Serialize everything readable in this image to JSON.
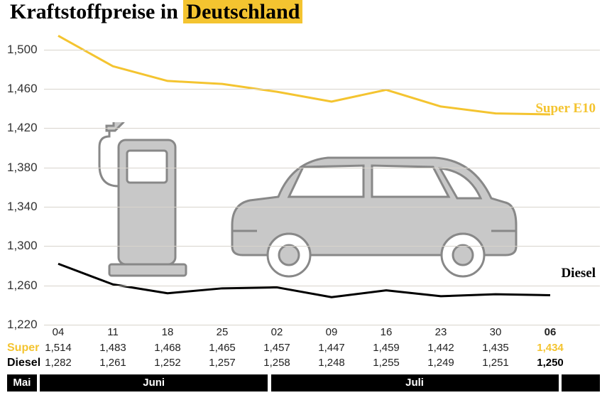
{
  "title_prefix": "Kraftstoffpreise in ",
  "title_highlight": "Deutschland",
  "chart": {
    "type": "line",
    "ylim": [
      1220,
      1520
    ],
    "yticks": [
      1220,
      1260,
      1300,
      1340,
      1380,
      1420,
      1460,
      1500
    ],
    "ytick_labels": [
      "1,220",
      "1,260",
      "1,300",
      "1,340",
      "1,380",
      "1,420",
      "1,460",
      "1,500"
    ],
    "grid_color": "#d8d4cc",
    "background_color": "#ffffff",
    "x_count": 10,
    "x_labels": [
      "04",
      "11",
      "18",
      "25",
      "02",
      "09",
      "16",
      "23",
      "30",
      "06"
    ],
    "series": {
      "super": {
        "label": "Super E10",
        "color": "#f4c430",
        "line_width": 3,
        "values": [
          1514,
          1483,
          1468,
          1465,
          1457,
          1447,
          1459,
          1442,
          1435,
          1434
        ],
        "display": [
          "1,514",
          "1,483",
          "1,468",
          "1,465",
          "1,457",
          "1,447",
          "1,459",
          "1,442",
          "1,435",
          "1,434"
        ]
      },
      "diesel": {
        "label": "Diesel",
        "color": "#000000",
        "line_width": 3,
        "values": [
          1282,
          1261,
          1252,
          1257,
          1258,
          1248,
          1255,
          1249,
          1251,
          1250
        ],
        "display": [
          "1,282",
          "1,261",
          "1,252",
          "1,257",
          "1,258",
          "1,248",
          "1,255",
          "1,249",
          "1,251",
          "1,250"
        ]
      }
    },
    "row_labels": {
      "super": "Super",
      "diesel": "Diesel"
    },
    "months": [
      {
        "label": "Mai",
        "start": 0,
        "end": 0.05
      },
      {
        "label": "Juni",
        "start": 0.055,
        "end": 0.44
      },
      {
        "label": "Juli",
        "start": 0.445,
        "end": 0.93
      },
      {
        "label": "",
        "start": 0.935,
        "end": 1.0
      }
    ],
    "illustration": {
      "pump_color": "#c8c8c8",
      "car_color": "#c8c8c8",
      "stroke": "#888888"
    }
  }
}
